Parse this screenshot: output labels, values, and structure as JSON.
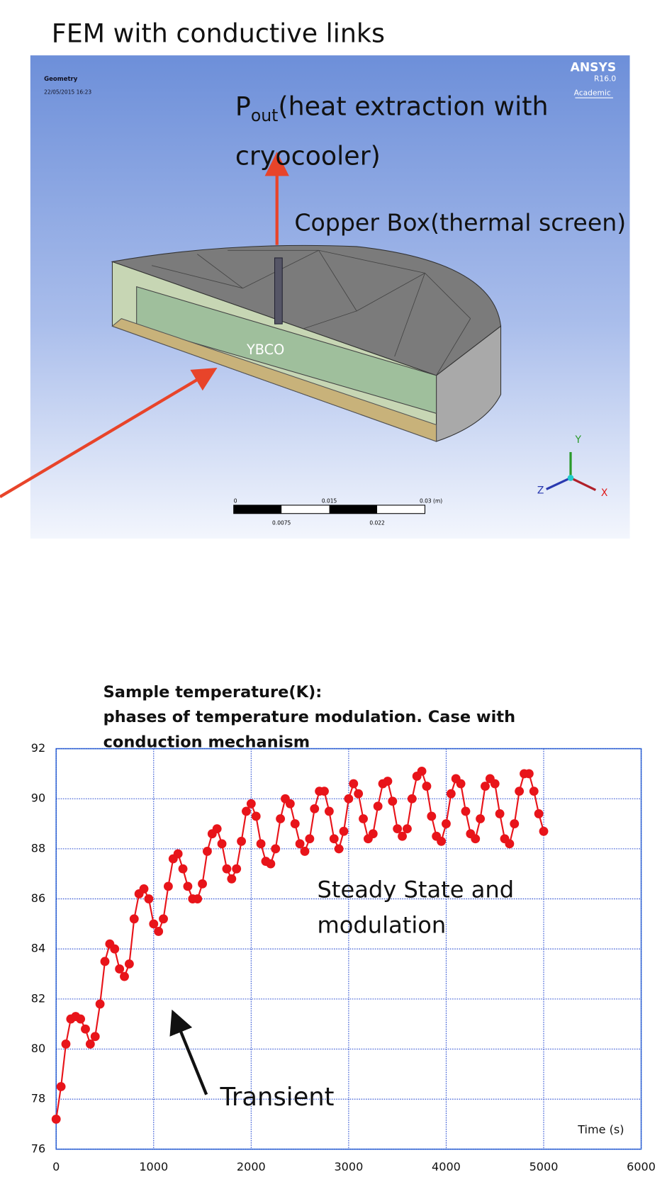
{
  "slide": {
    "title": "FEM with conductive links",
    "render": {
      "geometry_label": "Geometry",
      "date": "22/05/2015 16:23",
      "logo": "ANSYS",
      "version": "R16.0",
      "license": "Academic",
      "pout_main": "P",
      "pout_sub": "out",
      "pout_rest": "(heat extraction with cryocooler)",
      "copper_box": "Copper Box(thermal screen)",
      "ybco": "YBCO",
      "scale_top": [
        "0",
        "0.015",
        "0.03 (m)"
      ],
      "scale_bottom": [
        "0.0075",
        "0.022"
      ],
      "axes": [
        "Y",
        "Z",
        "X"
      ]
    },
    "annotations": {
      "steady": "Steady State and modulation",
      "transient": "Transient"
    }
  },
  "chart_data": {
    "type": "line",
    "title": "Sample temperature(K):",
    "subtitle": "phases of temperature modulation. Case with conduction mechanism",
    "x_label": "Time (s)",
    "color": "#e8141a",
    "xlim": [
      0,
      6000
    ],
    "xticks": [
      0,
      1000,
      2000,
      3000,
      4000,
      5000,
      6000
    ],
    "ylim": [
      76,
      92
    ],
    "yticks": [
      76,
      78,
      80,
      82,
      84,
      86,
      88,
      90,
      92
    ],
    "grid": true,
    "x": [
      0,
      50,
      100,
      150,
      200,
      250,
      300,
      350,
      400,
      450,
      500,
      550,
      600,
      650,
      700,
      750,
      800,
      850,
      900,
      950,
      1000,
      1050,
      1100,
      1150,
      1200,
      1250,
      1300,
      1350,
      1400,
      1450,
      1500,
      1550,
      1600,
      1650,
      1700,
      1750,
      1800,
      1850,
      1900,
      1950,
      2000,
      2050,
      2100,
      2150,
      2200,
      2250,
      2300,
      2350,
      2400,
      2450,
      2500,
      2550,
      2600,
      2650,
      2700,
      2750,
      2800,
      2850,
      2900,
      2950,
      3000,
      3050,
      3100,
      3150,
      3200,
      3250,
      3300,
      3350,
      3400,
      3450,
      3500,
      3550,
      3600,
      3650,
      3700,
      3750,
      3800,
      3850,
      3900,
      3950,
      4000,
      4050,
      4100,
      4150,
      4200,
      4250,
      4300,
      4350,
      4400,
      4450,
      4500,
      4550,
      4600,
      4650,
      4700,
      4750,
      4800,
      4850,
      4900,
      4950,
      5000
    ],
    "values": [
      77.2,
      78.5,
      80.2,
      81.2,
      81.3,
      81.2,
      80.8,
      80.2,
      80.5,
      81.8,
      83.5,
      84.2,
      84.0,
      83.2,
      82.9,
      83.4,
      85.2,
      86.2,
      86.4,
      86.0,
      85.0,
      84.7,
      85.2,
      86.5,
      87.6,
      87.8,
      87.2,
      86.5,
      86.0,
      86.0,
      86.6,
      87.9,
      88.6,
      88.8,
      88.2,
      87.2,
      86.8,
      87.2,
      88.3,
      89.5,
      89.8,
      89.3,
      88.2,
      87.5,
      87.4,
      88.0,
      89.2,
      90.0,
      89.8,
      89.0,
      88.2,
      87.9,
      88.4,
      89.6,
      90.3,
      90.3,
      89.5,
      88.4,
      88.0,
      88.7,
      90.0,
      90.6,
      90.2,
      89.2,
      88.4,
      88.6,
      89.7,
      90.6,
      90.7,
      89.9,
      88.8,
      88.5,
      88.8,
      90.0,
      90.9,
      91.1,
      90.5,
      89.3,
      88.5,
      88.3,
      89.0,
      90.2,
      90.8,
      90.6,
      89.5,
      88.6,
      88.4,
      89.2,
      90.5,
      90.8,
      90.6,
      89.4,
      88.4,
      88.2,
      89.0,
      90.3,
      91.0,
      91.0,
      90.3,
      89.4,
      88.7
    ]
  }
}
